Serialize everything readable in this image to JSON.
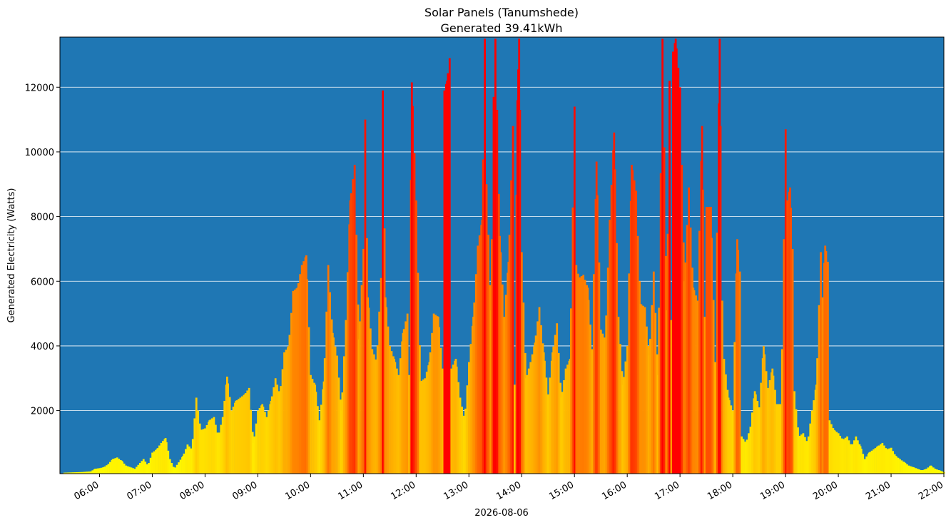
{
  "chart_data": {
    "type": "bar",
    "title": "Solar Panels (Tanumshede)",
    "subtitle": "Generated 39.41kWh",
    "xlabel": "2026-08-06",
    "ylabel": "Generated Electricity (Watts)",
    "background_color": "#1f77b4",
    "grid": "horizontal",
    "x_range": [
      "05:15",
      "22:00"
    ],
    "ylim": [
      50,
      13550
    ],
    "ytick_values": [
      2000,
      4000,
      6000,
      8000,
      10000,
      12000
    ],
    "ytick_labels": [
      "2000",
      "4000",
      "6000",
      "8000",
      "10000",
      "12000"
    ],
    "xtick_values": [
      "06:00",
      "07:00",
      "08:00",
      "09:00",
      "10:00",
      "11:00",
      "12:00",
      "13:00",
      "14:00",
      "15:00",
      "16:00",
      "17:00",
      "18:00",
      "19:00",
      "20:00",
      "21:00",
      "22:00"
    ],
    "xtick_labels": [
      "06:00",
      "07:00",
      "08:00",
      "09:00",
      "10:00",
      "11:00",
      "12:00",
      "13:00",
      "14:00",
      "15:00",
      "16:00",
      "17:00",
      "18:00",
      "19:00",
      "20:00",
      "21:00",
      "22:00"
    ],
    "color_scale": {
      "low": "#ffff00",
      "high": "#ff0000",
      "max_value": 12000
    },
    "bar_interval_minutes": 2,
    "series": [
      {
        "start": "05:20",
        "points": [
          [
            "05:20",
            80
          ],
          [
            "05:40",
            100
          ],
          [
            "05:50",
            120
          ],
          [
            "05:55",
            200
          ],
          [
            "06:00",
            220
          ],
          [
            "06:05",
            250
          ],
          [
            "06:10",
            350
          ],
          [
            "06:15",
            500
          ],
          [
            "06:20",
            550
          ],
          [
            "06:25",
            450
          ],
          [
            "06:30",
            300
          ],
          [
            "06:40",
            200
          ],
          [
            "06:50",
            500
          ],
          [
            "06:55",
            300
          ],
          [
            "07:00",
            700
          ],
          [
            "07:05",
            800
          ],
          [
            "07:10",
            1000
          ],
          [
            "07:15",
            1150
          ],
          [
            "07:20",
            500
          ],
          [
            "07:25",
            200
          ],
          [
            "07:30",
            400
          ],
          [
            "07:35",
            600
          ],
          [
            "07:40",
            950
          ],
          [
            "07:45",
            800
          ],
          [
            "07:50",
            2400
          ],
          [
            "07:55",
            1400
          ],
          [
            "08:00",
            1450
          ],
          [
            "08:05",
            1700
          ],
          [
            "08:10",
            1800
          ],
          [
            "08:15",
            1200
          ],
          [
            "08:20",
            1800
          ],
          [
            "08:25",
            3050
          ],
          [
            "08:30",
            2000
          ],
          [
            "08:35",
            2300
          ],
          [
            "08:40",
            2400
          ],
          [
            "08:45",
            2500
          ],
          [
            "08:50",
            2700
          ],
          [
            "08:55",
            1000
          ],
          [
            "09:00",
            2000
          ],
          [
            "09:05",
            2200
          ],
          [
            "09:10",
            1800
          ],
          [
            "09:15",
            2300
          ],
          [
            "09:20",
            3000
          ],
          [
            "09:25",
            2500
          ],
          [
            "09:30",
            3800
          ],
          [
            "09:35",
            4000
          ],
          [
            "09:40",
            5700
          ],
          [
            "09:45",
            5800
          ],
          [
            "09:50",
            6500
          ],
          [
            "09:55",
            6800
          ],
          [
            "10:00",
            3100
          ],
          [
            "10:05",
            2800
          ],
          [
            "10:10",
            1700
          ],
          [
            "10:15",
            2900
          ],
          [
            "10:20",
            6500
          ],
          [
            "10:25",
            4400
          ],
          [
            "10:30",
            3700
          ],
          [
            "10:35",
            2000
          ],
          [
            "10:40",
            4800
          ],
          [
            "10:45",
            8500
          ],
          [
            "10:50",
            9600
          ],
          [
            "10:55",
            4200
          ],
          [
            "11:00",
            7000
          ],
          [
            "11:02",
            11000
          ],
          [
            "11:05",
            5500
          ],
          [
            "11:10",
            3900
          ],
          [
            "11:15",
            3500
          ],
          [
            "11:20",
            6100
          ],
          [
            "11:22",
            11900
          ],
          [
            "11:25",
            5500
          ],
          [
            "11:30",
            4000
          ],
          [
            "11:35",
            3600
          ],
          [
            "11:40",
            3100
          ],
          [
            "11:45",
            4400
          ],
          [
            "11:50",
            5000
          ],
          [
            "11:52",
            3100
          ],
          [
            "11:55",
            12150
          ],
          [
            "12:00",
            8500
          ],
          [
            "12:05",
            2900
          ],
          [
            "12:10",
            3000
          ],
          [
            "12:15",
            3500
          ],
          [
            "12:20",
            5000
          ],
          [
            "12:25",
            4900
          ],
          [
            "12:30",
            3300
          ],
          [
            "12:32",
            11900
          ],
          [
            "12:35",
            12200
          ],
          [
            "12:38",
            12900
          ],
          [
            "12:40",
            3300
          ],
          [
            "12:45",
            3600
          ],
          [
            "12:50",
            2400
          ],
          [
            "12:55",
            1700
          ],
          [
            "13:00",
            3500
          ],
          [
            "13:05",
            4900
          ],
          [
            "13:10",
            7100
          ],
          [
            "13:15",
            7900
          ],
          [
            "13:18",
            13500
          ],
          [
            "13:20",
            9000
          ],
          [
            "13:25",
            5100
          ],
          [
            "13:28",
            11700
          ],
          [
            "13:30",
            13500
          ],
          [
            "13:32",
            11300
          ],
          [
            "13:35",
            7400
          ],
          [
            "13:40",
            4900
          ],
          [
            "13:45",
            6600
          ],
          [
            "13:50",
            10800
          ],
          [
            "13:52",
            2800
          ],
          [
            "13:55",
            11600
          ],
          [
            "13:57",
            13500
          ],
          [
            "14:00",
            6900
          ],
          [
            "14:05",
            3000
          ],
          [
            "14:10",
            3500
          ],
          [
            "14:15",
            4100
          ],
          [
            "14:20",
            5200
          ],
          [
            "14:25",
            3800
          ],
          [
            "14:30",
            2500
          ],
          [
            "14:35",
            3800
          ],
          [
            "14:40",
            4700
          ],
          [
            "14:45",
            2400
          ],
          [
            "14:50",
            3300
          ],
          [
            "14:55",
            3600
          ],
          [
            "15:00",
            11400
          ],
          [
            "15:02",
            6500
          ],
          [
            "15:05",
            6100
          ],
          [
            "15:10",
            6200
          ],
          [
            "15:15",
            5800
          ],
          [
            "15:20",
            3900
          ],
          [
            "15:25",
            9700
          ],
          [
            "15:30",
            4500
          ],
          [
            "15:35",
            4200
          ],
          [
            "15:40",
            7900
          ],
          [
            "15:45",
            10600
          ],
          [
            "15:50",
            4900
          ],
          [
            "15:55",
            2800
          ],
          [
            "16:00",
            4000
          ],
          [
            "16:05",
            9600
          ],
          [
            "16:10",
            8800
          ],
          [
            "16:15",
            5300
          ],
          [
            "16:20",
            5200
          ],
          [
            "16:25",
            3700
          ],
          [
            "16:30",
            6300
          ],
          [
            "16:35",
            3100
          ],
          [
            "16:40",
            13500
          ],
          [
            "16:45",
            5100
          ],
          [
            "16:48",
            12200
          ],
          [
            "16:50",
            4800
          ],
          [
            "16:52",
            13100
          ],
          [
            "16:55",
            13500
          ],
          [
            "17:00",
            12000
          ],
          [
            "17:05",
            6000
          ],
          [
            "17:10",
            8900
          ],
          [
            "17:15",
            5800
          ],
          [
            "17:20",
            5400
          ],
          [
            "17:25",
            10800
          ],
          [
            "17:28",
            4900
          ],
          [
            "17:30",
            8300
          ],
          [
            "17:35",
            8300
          ],
          [
            "17:40",
            3500
          ],
          [
            "17:45",
            13500
          ],
          [
            "17:48",
            5400
          ],
          [
            "17:50",
            3600
          ],
          [
            "17:55",
            2400
          ],
          [
            "18:00",
            2000
          ],
          [
            "18:05",
            7300
          ],
          [
            "18:08",
            6300
          ],
          [
            "18:10",
            1200
          ],
          [
            "18:15",
            1000
          ],
          [
            "18:20",
            1500
          ],
          [
            "18:25",
            2600
          ],
          [
            "18:30",
            2100
          ],
          [
            "18:35",
            4000
          ],
          [
            "18:40",
            2700
          ],
          [
            "18:45",
            3300
          ],
          [
            "18:50",
            2200
          ],
          [
            "18:55",
            2200
          ],
          [
            "19:00",
            10700
          ],
          [
            "19:02",
            8500
          ],
          [
            "19:05",
            8900
          ],
          [
            "19:08",
            7000
          ],
          [
            "19:10",
            2600
          ],
          [
            "19:15",
            1200
          ],
          [
            "19:20",
            1300
          ],
          [
            "19:25",
            1000
          ],
          [
            "19:30",
            2000
          ],
          [
            "19:35",
            2800
          ],
          [
            "19:40",
            6900
          ],
          [
            "19:42",
            5500
          ],
          [
            "19:45",
            7100
          ],
          [
            "19:48",
            6600
          ],
          [
            "19:50",
            1700
          ],
          [
            "19:55",
            1400
          ],
          [
            "20:00",
            1300
          ],
          [
            "20:05",
            1100
          ],
          [
            "20:10",
            1200
          ],
          [
            "20:15",
            900
          ],
          [
            "20:20",
            1200
          ],
          [
            "20:25",
            900
          ],
          [
            "20:30",
            500
          ],
          [
            "20:35",
            700
          ],
          [
            "20:40",
            800
          ],
          [
            "20:45",
            900
          ],
          [
            "20:50",
            1000
          ],
          [
            "20:55",
            800
          ],
          [
            "21:00",
            850
          ],
          [
            "21:05",
            600
          ],
          [
            "21:10",
            500
          ],
          [
            "21:15",
            400
          ],
          [
            "21:20",
            300
          ],
          [
            "21:25",
            250
          ],
          [
            "21:30",
            200
          ],
          [
            "21:35",
            150
          ],
          [
            "21:40",
            200
          ],
          [
            "21:45",
            300
          ],
          [
            "21:50",
            200
          ],
          [
            "21:55",
            150
          ],
          [
            "22:00",
            100
          ]
        ]
      }
    ]
  }
}
